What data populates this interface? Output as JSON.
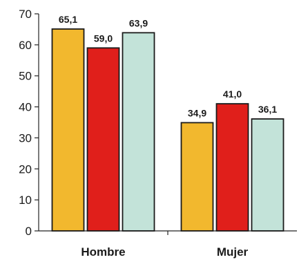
{
  "chart_data": {
    "type": "bar",
    "categories": [
      "Hombre",
      "Mujer"
    ],
    "series": [
      {
        "values": [
          65.1,
          34.9
        ],
        "color": "#f2b82e",
        "labels": [
          "65,1",
          "34,9"
        ]
      },
      {
        "values": [
          59.0,
          41.0
        ],
        "color": "#e01f1b",
        "labels": [
          "59,0",
          "41,0"
        ]
      },
      {
        "values": [
          63.9,
          36.1
        ],
        "color": "#c3e3d9",
        "labels": [
          "63,9",
          "36,1"
        ]
      }
    ],
    "ylim": [
      0,
      70
    ],
    "yticks": [
      0,
      10,
      20,
      30,
      40,
      50,
      60,
      70
    ],
    "grid": false,
    "legend": "none",
    "title": "",
    "xlabel": "",
    "ylabel": ""
  }
}
